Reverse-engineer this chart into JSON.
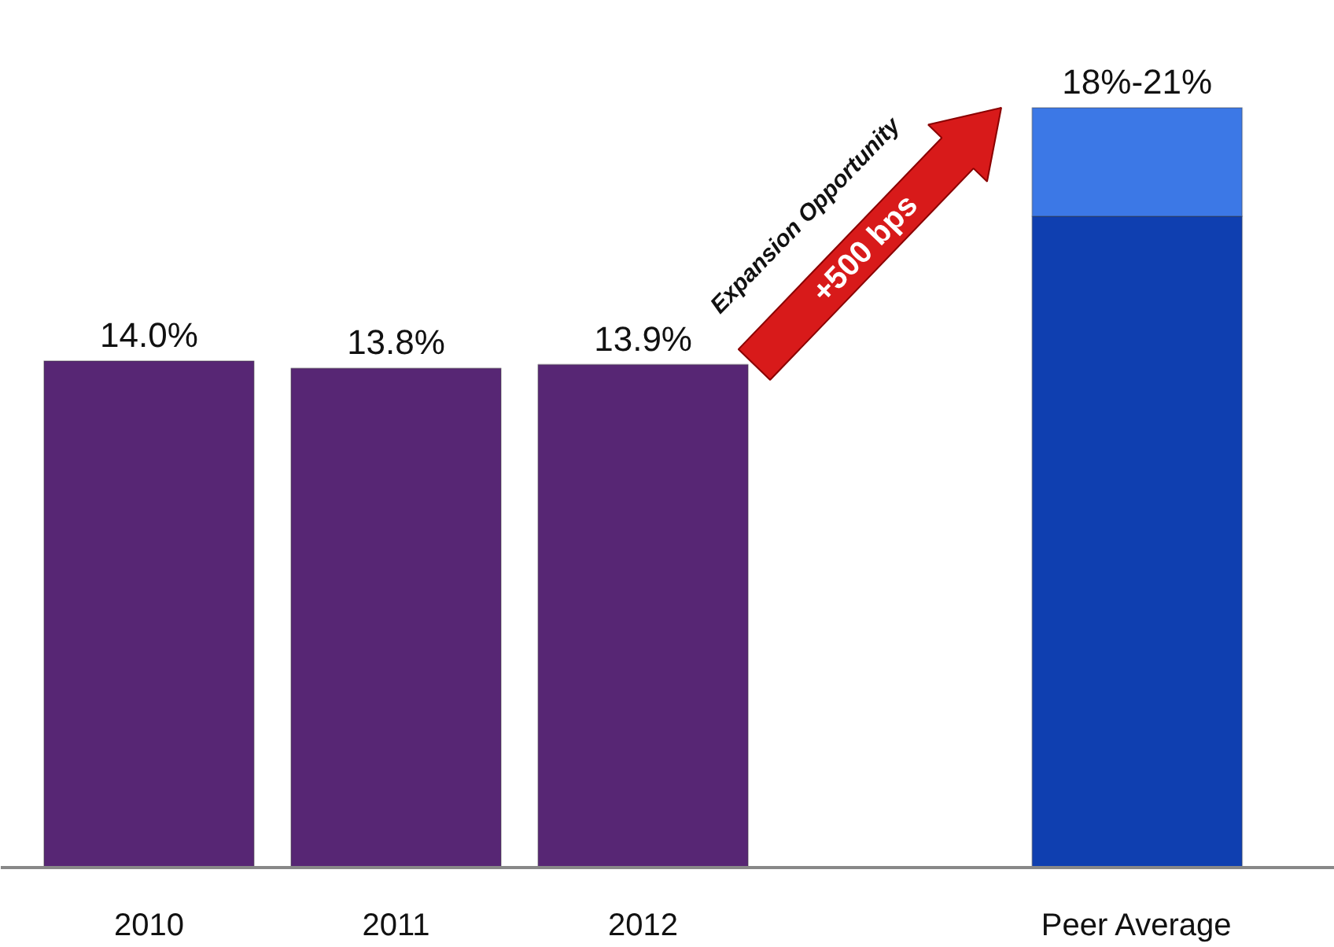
{
  "chart_data": {
    "type": "bar",
    "stacked": true,
    "categories": [
      "2010",
      "2011",
      "2012",
      null,
      "Peer Average"
    ],
    "series": [
      {
        "colors": [
          "#572674",
          "#572674",
          "#572674",
          "#572674",
          "#0f3fb0"
        ],
        "values": [
          14.0,
          13.8,
          13.9,
          null,
          18
        ],
        "value_labels": [
          "14.0%",
          "13.8%",
          "13.9%",
          null,
          null
        ]
      },
      {
        "color": "#3c78e6",
        "values": [
          null,
          null,
          null,
          null,
          3
        ]
      }
    ],
    "totals": [
      null,
      null,
      null,
      null,
      "18%-21%"
    ],
    "annotations": [
      "Expansion Opportunity",
      "+500 bps"
    ],
    "grid": false,
    "tick_labels": "x"
  }
}
